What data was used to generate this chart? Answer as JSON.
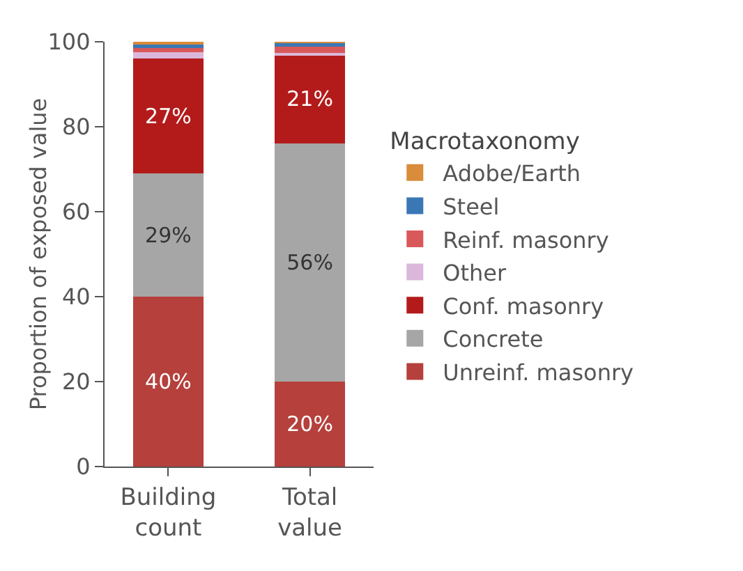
{
  "chart_data": {
    "type": "bar",
    "stacked": true,
    "ylabel": "Proportion of exposed value",
    "legend_title": "Macrotaxonomy",
    "legend": "right",
    "grid": false,
    "categories": [
      "Building count",
      "Total value"
    ],
    "ylim": [
      0,
      100
    ],
    "yticks": [
      0,
      20,
      40,
      60,
      80,
      100
    ],
    "series": [
      {
        "name": "Unreinf. masonry",
        "color": "#b5403c",
        "values": [
          40,
          20
        ],
        "value_labels": [
          "40%",
          "20%"
        ]
      },
      {
        "name": "Concrete",
        "color": "#a6a6a6",
        "values": [
          29,
          56
        ],
        "value_labels": [
          "29%",
          "56%"
        ]
      },
      {
        "name": "Conf. masonry",
        "color": "#b31b1b",
        "values": [
          27,
          21
        ],
        "value_labels": [
          "27%",
          "21%"
        ]
      },
      {
        "name": "Other",
        "color": "#dbb8db",
        "values": [
          1.5,
          0.3
        ],
        "value_labels": [
          null,
          null
        ]
      },
      {
        "name": "Reinf. masonry",
        "color": "#d9585a",
        "values": [
          1,
          1.5
        ],
        "value_labels": [
          null,
          null
        ]
      },
      {
        "name": "Steel",
        "color": "#3a78b5",
        "values": [
          1,
          1
        ],
        "value_labels": [
          null,
          null
        ]
      },
      {
        "name": "Adobe/Earth",
        "color": "#d98c3a",
        "values": [
          0.5,
          0.2
        ],
        "value_labels": [
          null,
          null
        ]
      }
    ]
  }
}
